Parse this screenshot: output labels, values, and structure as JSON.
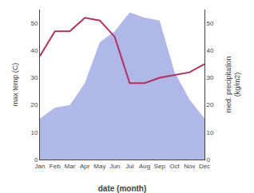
{
  "chart_data": {
    "type": "line",
    "categories": [
      "Jan",
      "Feb",
      "Mar",
      "Apr",
      "May",
      "Jun",
      "Jul",
      "Aug",
      "Sep",
      "Oct",
      "Nov",
      "Dec"
    ],
    "series": [
      {
        "type": "area",
        "axis": "y2",
        "color": "#b0b8e8",
        "values": [
          15,
          19,
          20,
          28,
          43,
          47,
          54,
          52,
          51,
          32,
          22,
          15
        ]
      },
      {
        "type": "line",
        "color": "#b03060",
        "values": [
          38,
          47,
          47,
          52,
          51,
          45,
          28,
          28,
          30,
          31,
          32,
          35
        ]
      }
    ],
    "xlabel": "date (month)",
    "ylabel": "max temp (C)",
    "y2label": "med. precipitation\n(kg/m2)",
    "ylim": [
      0,
      55
    ],
    "yticks": [
      0,
      10,
      20,
      30,
      40,
      50
    ],
    "y2lim": [
      0,
      55
    ],
    "y2ticks": [
      0,
      10,
      20,
      30,
      40,
      50
    ],
    "grid": false
  }
}
